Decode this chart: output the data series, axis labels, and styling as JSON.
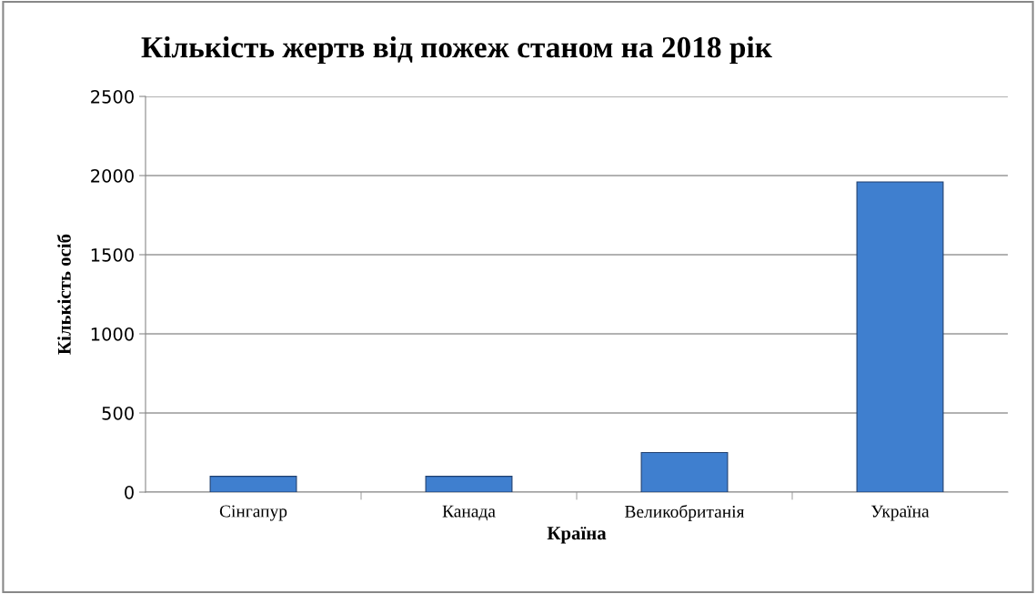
{
  "chart_data": {
    "type": "bar",
    "title": "Кількість жертв від пожеж станом на 2018 рік",
    "xlabel": "Країна",
    "ylabel": "Кількість осіб",
    "categories": [
      "Сінгапур",
      "Канада",
      "Великобританія",
      "Україна"
    ],
    "values": [
      100,
      100,
      250,
      1960
    ],
    "color": "#3f7fcf",
    "ylim": [
      0,
      2500
    ],
    "yticks": [
      0,
      500,
      1000,
      1500,
      2000,
      2500
    ],
    "grid": "y",
    "legend": false
  }
}
